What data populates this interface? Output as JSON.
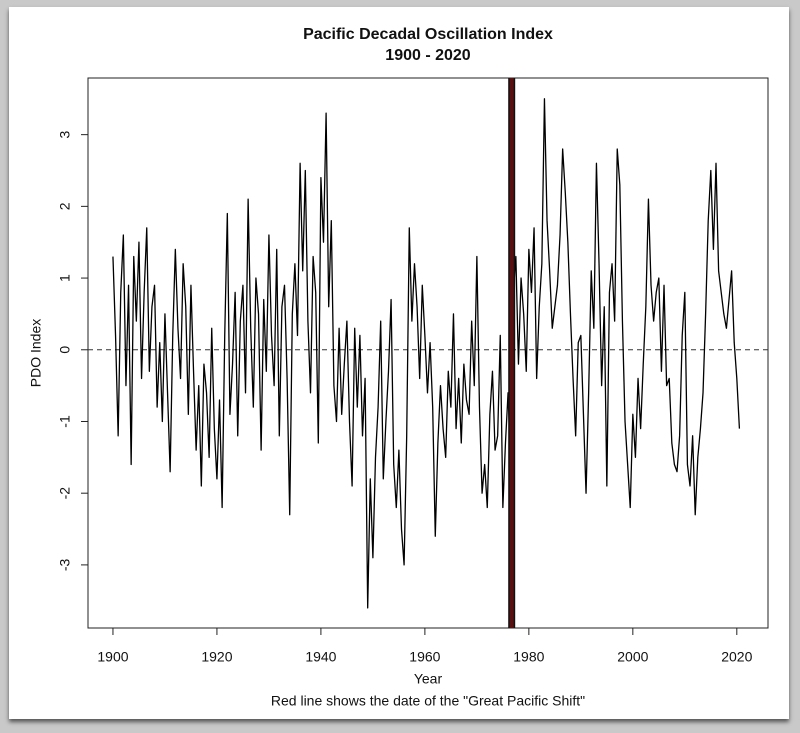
{
  "chart_data": {
    "type": "line",
    "title": "Pacific Decadal Oscillation Index",
    "subtitle": "1900 - 2020",
    "x_label": "Year",
    "y_label": "PDO Index",
    "caption": "Red line shows the date of the \"Great Pacific Shift\"",
    "color": "#000000",
    "x": [
      1900,
      1900.5,
      1901,
      1901.5,
      1902,
      1902.5,
      1903,
      1903.5,
      1904,
      1904.5,
      1905,
      1905.5,
      1906,
      1906.5,
      1907,
      1907.5,
      1908,
      1908.5,
      1909,
      1909.5,
      1910,
      1910.5,
      1911,
      1911.5,
      1912,
      1912.5,
      1913,
      1913.5,
      1914,
      1914.5,
      1915,
      1915.5,
      1916,
      1916.5,
      1917,
      1917.5,
      1918,
      1918.5,
      1919,
      1919.5,
      1920,
      1920.5,
      1921,
      1921.5,
      1922,
      1922.5,
      1923,
      1923.5,
      1924,
      1924.5,
      1925,
      1925.5,
      1926,
      1926.5,
      1927,
      1927.5,
      1928,
      1928.5,
      1929,
      1929.5,
      1930,
      1930.5,
      1931,
      1931.5,
      1932,
      1932.5,
      1933,
      1933.5,
      1934,
      1934.5,
      1935,
      1935.5,
      1936,
      1936.5,
      1937,
      1937.5,
      1938,
      1938.5,
      1939,
      1939.5,
      1940,
      1940.5,
      1941,
      1941.5,
      1942,
      1942.5,
      1943,
      1943.5,
      1944,
      1944.5,
      1945,
      1945.5,
      1946,
      1946.5,
      1947,
      1947.5,
      1948,
      1948.5,
      1949,
      1949.5,
      1950,
      1950.5,
      1951,
      1951.5,
      1952,
      1952.5,
      1953,
      1953.5,
      1954,
      1954.5,
      1955,
      1955.5,
      1956,
      1956.5,
      1957,
      1957.5,
      1958,
      1958.5,
      1959,
      1959.5,
      1960,
      1960.5,
      1961,
      1961.5,
      1962,
      1962.5,
      1963,
      1963.5,
      1964,
      1964.5,
      1965,
      1965.5,
      1966,
      1966.5,
      1967,
      1967.5,
      1968,
      1968.5,
      1969,
      1969.5,
      1970,
      1970.5,
      1971,
      1971.5,
      1972,
      1972.5,
      1973,
      1973.5,
      1974,
      1974.5,
      1975,
      1975.5,
      1976,
      1976.5,
      1977,
      1977.5,
      1978,
      1978.5,
      1979,
      1979.5,
      1980,
      1980.5,
      1981,
      1981.5,
      1982,
      1982.5,
      1983,
      1983.5,
      1984,
      1984.5,
      1985,
      1985.5,
      1986,
      1986.5,
      1987,
      1987.5,
      1988,
      1988.5,
      1989,
      1989.5,
      1990,
      1990.5,
      1991,
      1991.5,
      1992,
      1992.5,
      1993,
      1993.5,
      1994,
      1994.5,
      1995,
      1995.5,
      1996,
      1996.5,
      1997,
      1997.5,
      1998,
      1998.5,
      1999,
      1999.5,
      2000,
      2000.5,
      2001,
      2001.5,
      2002,
      2002.5,
      2003,
      2003.5,
      2004,
      2004.5,
      2005,
      2005.5,
      2006,
      2006.5,
      2007,
      2007.5,
      2008,
      2008.5,
      2009,
      2009.5,
      2010,
      2010.5,
      2011,
      2011.5,
      2012,
      2012.5,
      2013,
      2013.5,
      2014,
      2014.5,
      2015,
      2015.5,
      2016,
      2016.5,
      2017,
      2017.5,
      2018,
      2018.5,
      2019,
      2019.5,
      2020,
      2020.5
    ],
    "values": [
      1.3,
      0.2,
      -1.2,
      0.8,
      1.6,
      -0.5,
      0.9,
      -1.6,
      1.3,
      0.4,
      1.5,
      -0.4,
      0.8,
      1.7,
      -0.3,
      0.6,
      0.9,
      -0.8,
      0.1,
      -1.0,
      0.5,
      -0.6,
      -1.7,
      0.2,
      1.4,
      0.3,
      -0.4,
      1.2,
      0.6,
      -0.9,
      0.9,
      -0.3,
      -1.4,
      -0.5,
      -1.9,
      -0.2,
      -0.6,
      -1.5,
      0.3,
      -1.1,
      -1.8,
      -0.7,
      -2.2,
      0.2,
      1.9,
      -0.9,
      -0.2,
      0.8,
      -1.2,
      0.4,
      0.9,
      -0.6,
      2.1,
      0.3,
      -0.8,
      1.0,
      0.5,
      -1.4,
      0.7,
      -0.3,
      1.6,
      0.2,
      -0.5,
      1.4,
      -1.2,
      0.6,
      0.9,
      -0.4,
      -2.3,
      0.5,
      1.2,
      0.2,
      2.6,
      1.1,
      2.5,
      0.4,
      -0.6,
      1.3,
      0.8,
      -1.3,
      2.4,
      1.5,
      3.3,
      0.6,
      1.8,
      -0.5,
      -1.0,
      0.3,
      -0.9,
      -0.2,
      0.4,
      -1.0,
      -1.9,
      0.3,
      -0.8,
      0.2,
      -1.2,
      -0.4,
      -3.6,
      -1.8,
      -2.9,
      -1.5,
      -0.8,
      0.4,
      -1.8,
      -1.0,
      -0.3,
      0.7,
      -1.6,
      -2.2,
      -1.4,
      -2.5,
      -3.0,
      -1.2,
      1.7,
      0.4,
      1.2,
      0.6,
      -0.4,
      0.9,
      0.2,
      -0.6,
      0.1,
      -0.8,
      -2.6,
      -1.3,
      -0.5,
      -1.1,
      -1.5,
      -0.3,
      -0.8,
      0.5,
      -1.1,
      -0.4,
      -1.3,
      -0.2,
      -0.7,
      -0.9,
      0.4,
      -0.5,
      1.3,
      -0.8,
      -2.0,
      -1.6,
      -2.2,
      -0.9,
      -0.3,
      -1.4,
      -1.2,
      0.2,
      -2.2,
      -1.3,
      -0.6,
      -1.6,
      0.8,
      1.3,
      -0.2,
      1.0,
      0.5,
      -0.3,
      1.4,
      0.8,
      1.7,
      -0.4,
      0.6,
      1.2,
      3.5,
      1.8,
      1.1,
      0.3,
      0.6,
      0.9,
      1.6,
      2.8,
      2.2,
      1.5,
      0.5,
      -0.4,
      -1.2,
      0.1,
      0.2,
      -0.9,
      -2.0,
      -0.6,
      1.1,
      0.3,
      2.6,
      1.2,
      -0.5,
      0.6,
      -1.9,
      0.8,
      1.2,
      0.4,
      2.8,
      2.3,
      0.4,
      -1.0,
      -1.6,
      -2.2,
      -0.9,
      -1.5,
      -0.4,
      -1.1,
      -0.2,
      0.6,
      2.1,
      0.9,
      0.4,
      0.8,
      1.0,
      -0.3,
      0.9,
      -0.5,
      -0.4,
      -1.3,
      -1.6,
      -1.7,
      -1.2,
      0.2,
      0.8,
      -1.6,
      -1.9,
      -1.2,
      -2.3,
      -1.5,
      -1.1,
      -0.6,
      0.5,
      1.8,
      2.5,
      1.4,
      2.6,
      1.1,
      0.8,
      0.5,
      0.3,
      0.7,
      1.1,
      0.1,
      -0.4,
      -1.1
    ],
    "xlim": [
      1895.2,
      2026
    ],
    "ylim": [
      -3.88,
      3.79
    ],
    "xticks": [
      1900,
      1920,
      1940,
      1960,
      1980,
      2000,
      2020
    ],
    "yticks": [
      -3,
      -2,
      -1,
      0,
      1,
      2,
      3
    ],
    "zero_line": 0,
    "shift_line": {
      "x": 1976.7,
      "color": "#5a1010"
    }
  }
}
